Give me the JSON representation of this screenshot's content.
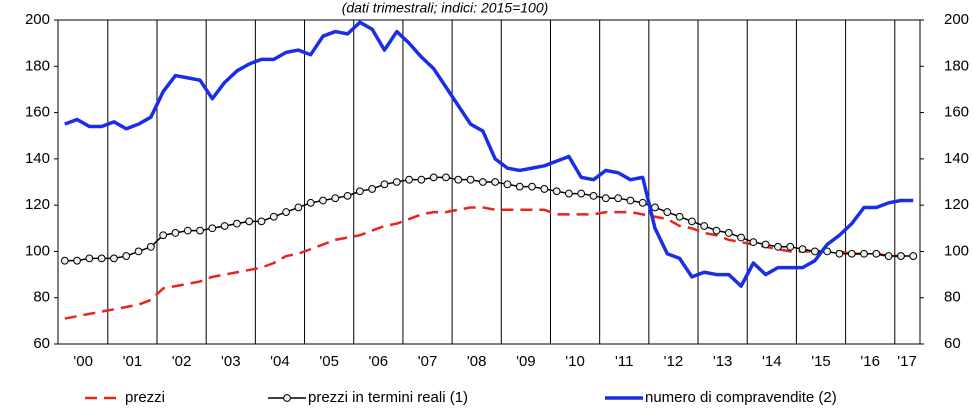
{
  "chart_data": {
    "type": "line",
    "title": "(dati trimestrali; indici: 2015=100)",
    "categories": [
      "'00",
      null,
      null,
      null,
      "'01",
      null,
      null,
      null,
      "'02",
      null,
      null,
      null,
      "'03",
      null,
      null,
      null,
      "'04",
      null,
      null,
      null,
      "'05",
      null,
      null,
      null,
      "'06",
      null,
      null,
      null,
      "'07",
      null,
      null,
      null,
      "'08",
      null,
      null,
      null,
      "'09",
      null,
      null,
      null,
      "'10",
      null,
      null,
      null,
      "'11",
      null,
      null,
      null,
      "'12",
      null,
      null,
      null,
      "'13",
      null,
      null,
      null,
      "'14",
      null,
      null,
      null,
      "'15",
      null,
      null,
      null,
      "'16",
      null,
      null,
      null,
      "'17",
      null
    ],
    "ylim": [
      60,
      200
    ],
    "yticks": [
      60,
      80,
      100,
      120,
      140,
      160,
      180,
      200
    ],
    "y2lim": [
      60,
      200
    ],
    "y2ticks": [
      60,
      80,
      100,
      120,
      140,
      160,
      180,
      200
    ],
    "series": [
      {
        "name": "prezzi",
        "color": "#e8241c",
        "style": "dashed",
        "markers": false,
        "values": [
          71,
          72,
          73,
          74,
          75,
          76,
          77,
          79,
          84,
          85,
          86,
          87,
          89,
          90,
          91,
          92,
          93,
          95,
          98,
          99,
          101,
          103,
          105,
          106,
          107,
          109,
          111,
          112,
          114,
          116,
          117,
          117,
          118,
          119,
          119,
          118,
          118,
          118,
          118,
          118,
          116,
          116,
          116,
          116,
          117,
          117,
          117,
          116,
          115,
          114,
          111,
          110,
          108,
          107,
          105,
          104,
          103,
          102,
          101,
          100,
          100,
          100,
          100,
          100,
          99,
          99,
          99,
          98,
          98,
          98
        ]
      },
      {
        "name": "prezzi in termini reali (1)",
        "color": "#000000",
        "style": "solid",
        "markers": true,
        "values": [
          96,
          96,
          97,
          97,
          97,
          98,
          100,
          102,
          107,
          108,
          109,
          109,
          110,
          111,
          112,
          113,
          113,
          115,
          117,
          119,
          121,
          122,
          123,
          124,
          126,
          127,
          129,
          130,
          131,
          131,
          132,
          132,
          131,
          131,
          130,
          130,
          129,
          128,
          128,
          127,
          126,
          125,
          125,
          124,
          123,
          123,
          122,
          121,
          119,
          117,
          115,
          113,
          111,
          109,
          108,
          106,
          104,
          103,
          102,
          102,
          101,
          100,
          100,
          99,
          99,
          99,
          99,
          98,
          98,
          98
        ]
      },
      {
        "name": "numero di compravendite (2)",
        "color": "#1a2ee8",
        "style": "thick",
        "markers": false,
        "values": [
          155,
          157,
          154,
          154,
          156,
          153,
          155,
          158,
          169,
          176,
          175,
          174,
          166,
          173,
          178,
          181,
          183,
          183,
          186,
          187,
          185,
          193,
          195,
          194,
          199,
          196,
          187,
          195,
          190,
          184,
          179,
          171,
          163,
          155,
          152,
          140,
          136,
          135,
          136,
          137,
          139,
          141,
          132,
          131,
          135,
          134,
          131,
          132,
          110,
          99,
          97,
          89,
          91,
          90,
          90,
          85,
          95,
          90,
          93,
          93,
          93,
          96,
          103,
          107,
          112,
          119,
          119,
          121,
          122,
          122
        ]
      }
    ]
  }
}
